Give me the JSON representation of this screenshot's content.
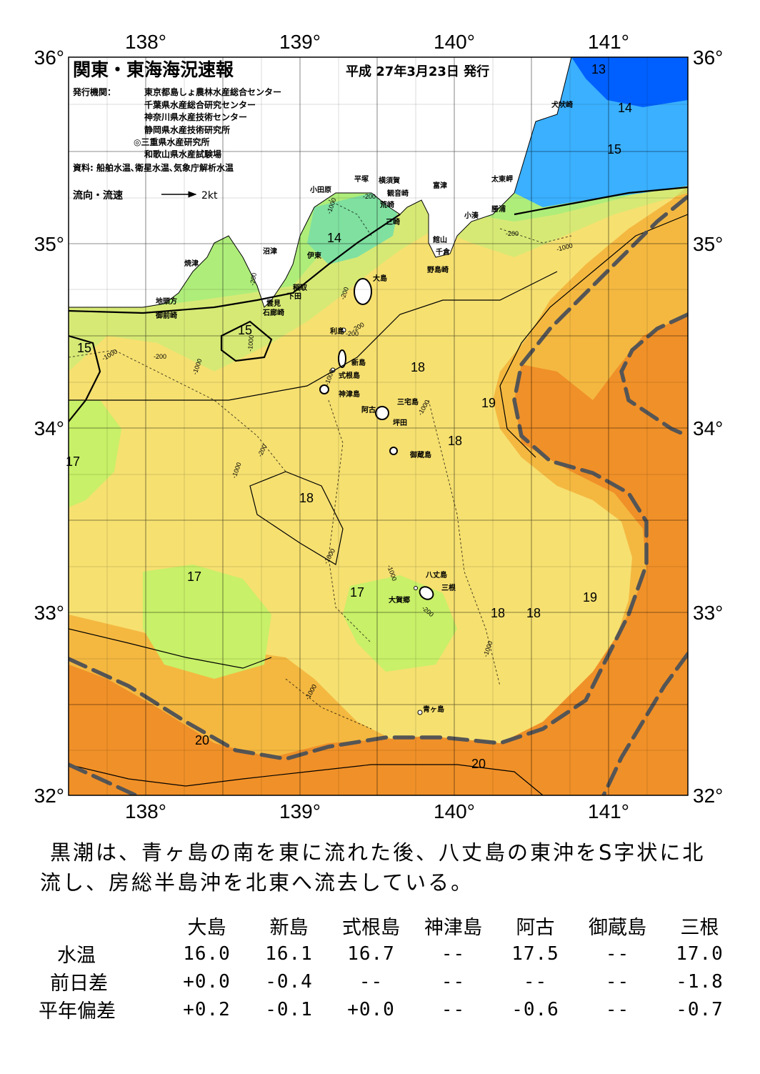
{
  "header": {
    "title": "関東・東海海況速報",
    "date": "平成 27年3月23日 発行",
    "issuer_label": "発行機関：",
    "issuers": [
      "東京都島しょ農林水産総合センター",
      "千葉県水産総合研究センター",
      "神奈川県水産技術センター",
      "静岡県水産技術研究所",
      "◎三重県水産研究所",
      "和歌山県水産試験場"
    ],
    "sources": "資料: 船舶水温､衛星水温､気象庁解析水温",
    "legend_label": "流向・流速",
    "legend_speed": "2kt"
  },
  "axes": {
    "lon_labels": [
      "138°",
      "139°",
      "140°",
      "141°"
    ],
    "lat_labels": [
      "36°",
      "35°",
      "34°",
      "33°",
      "32°"
    ]
  },
  "temperature_labels": [
    "13",
    "14",
    "15",
    "14",
    "15",
    "15",
    "18",
    "19",
    "18",
    "17",
    "18",
    "17",
    "17",
    "18",
    "18",
    "19",
    "20",
    "20"
  ],
  "depth_labels": [
    "-200",
    "-1000",
    "-200",
    "-200",
    "-1000",
    "-200",
    "-1000",
    "-200",
    "-200",
    "-1000",
    "-1000",
    "-200",
    "-1000",
    "-1000",
    "-1000",
    "-1000",
    "-1000",
    "-1000",
    "-200",
    "-200",
    "-1000"
  ],
  "place_names": {
    "inubozaki": "犬吠崎",
    "taitomisaki": "太東岬",
    "katsuura": "勝浦",
    "kominato": "小湊",
    "futtsu": "富津",
    "yokosuka": "横須賀",
    "kannonzaki": "観音崎",
    "arasaki": "荒崎",
    "misaki": "三崎",
    "hiratsuka": "平塚",
    "odawara": "小田原",
    "tateyama": "館山",
    "chikura": "千倉",
    "nojimazaki": "野島崎",
    "numazu": "沼津",
    "ito": "伊東",
    "yaizu": "焼津",
    "inatori": "稲取",
    "shimoda": "下田",
    "kumomi": "雲見",
    "irozaki": "石廊崎",
    "jitogata": "地頭方",
    "omaezaki": "御前崎",
    "oshima": "大島",
    "toshima": "利島",
    "niijima": "新島",
    "shikinejima": "式根島",
    "kozushima": "神津島",
    "miyakejima": "三宅島",
    "ako": "阿古",
    "tsubota": "坪田",
    "mikurajima": "御蔵島",
    "hachijojima": "八丈島",
    "mine": "三根",
    "okago": "大賀郷",
    "aogashima": "青ヶ島"
  },
  "colors": {
    "t13": "#0060ff",
    "t14": "#3ab0ff",
    "t15": "#80e880",
    "t17": "#c8f068",
    "t18": "#f6e070",
    "t19": "#f4b840",
    "t20": "#f09028",
    "kuroshio_axis": "#555555",
    "land": "#ffffff"
  },
  "summary": {
    "text": "黒潮は、青ヶ島の南を東に流れた後、八丈島の東沖をS字状に北流し、房総半島沖を北東へ流去している。"
  },
  "table": {
    "headers": [
      "大島",
      "新島",
      "式根島",
      "神津島",
      "阿古",
      "御蔵島",
      "三根"
    ],
    "rows": [
      {
        "label": "水温",
        "values": [
          "16.0",
          "16.1",
          "16.7",
          "--",
          "17.5",
          "--",
          "17.0"
        ]
      },
      {
        "label": "前日差",
        "values": [
          "+0.0",
          "-0.4",
          "--",
          "--",
          "--",
          "--",
          "-1.8"
        ]
      },
      {
        "label": "平年偏差",
        "values": [
          "+0.2",
          "-0.1",
          "+0.0",
          "--",
          "-0.6",
          "--",
          "-0.7"
        ]
      }
    ]
  }
}
